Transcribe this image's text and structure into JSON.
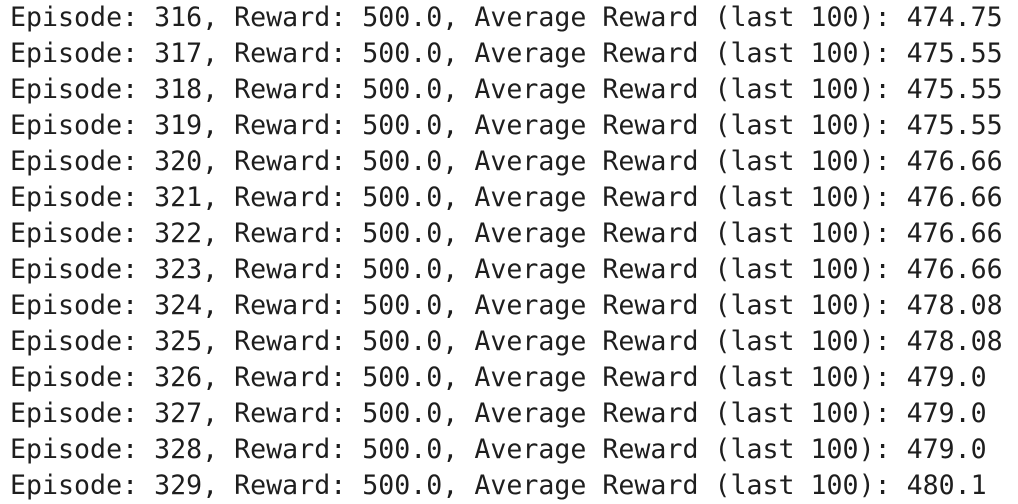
{
  "console": {
    "lines": [
      "Episode: 316, Reward: 500.0, Average Reward (last 100): 474.75",
      "Episode: 317, Reward: 500.0, Average Reward (last 100): 475.55",
      "Episode: 318, Reward: 500.0, Average Reward (last 100): 475.55",
      "Episode: 319, Reward: 500.0, Average Reward (last 100): 475.55",
      "Episode: 320, Reward: 500.0, Average Reward (last 100): 476.66",
      "Episode: 321, Reward: 500.0, Average Reward (last 100): 476.66",
      "Episode: 322, Reward: 500.0, Average Reward (last 100): 476.66",
      "Episode: 323, Reward: 500.0, Average Reward (last 100): 476.66",
      "Episode: 324, Reward: 500.0, Average Reward (last 100): 478.08",
      "Episode: 325, Reward: 500.0, Average Reward (last 100): 478.08",
      "Episode: 326, Reward: 500.0, Average Reward (last 100): 479.0",
      "Episode: 327, Reward: 500.0, Average Reward (last 100): 479.0",
      "Episode: 328, Reward: 500.0, Average Reward (last 100): 479.0",
      "Episode: 329, Reward: 500.0, Average Reward (last 100): 480.1"
    ]
  }
}
